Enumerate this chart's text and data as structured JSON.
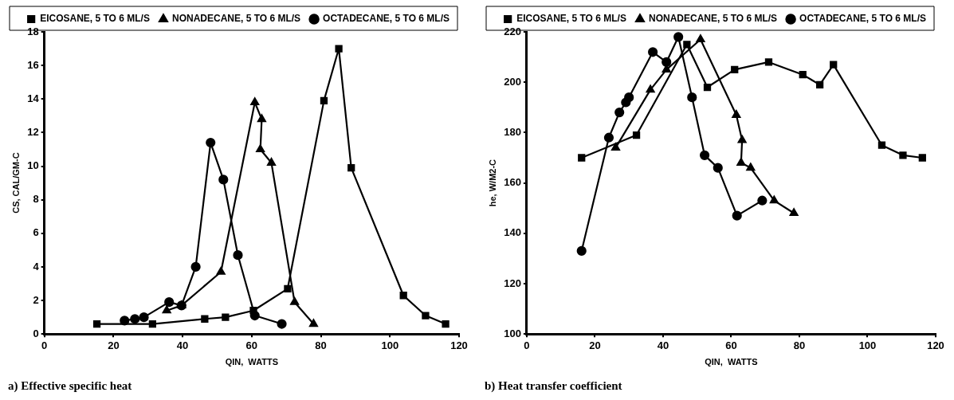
{
  "chart_data": [
    {
      "type": "line",
      "title": "a) Effective specific heat",
      "xlabel": "QIN,  WATTS",
      "ylabel": "CS, CAL/GM-C",
      "xlim": [
        0,
        120
      ],
      "xticks": [
        0,
        20,
        40,
        60,
        80,
        100,
        120
      ],
      "ylim": [
        0,
        18
      ],
      "yticks": [
        0,
        2,
        4,
        6,
        8,
        10,
        12,
        14,
        16,
        18
      ],
      "grid": false,
      "legend": "top right",
      "line_style": "solid",
      "series": [
        {
          "name": "EICOSANE, 5 TO 6 ML/S",
          "color": "#000000",
          "marker": "square",
          "x": [
            15.2,
            31.3,
            46.4,
            52.4,
            60.5,
            70.4,
            80.9,
            85.2,
            88.8,
            103.9,
            110.3,
            116.1
          ],
          "values": [
            0.6,
            0.6,
            0.9,
            1.0,
            1.4,
            2.7,
            13.9,
            17.0,
            9.9,
            2.3,
            1.1,
            0.6
          ]
        },
        {
          "name": "NONADECANE, 5 TO 6 ML/S",
          "color": "#000000",
          "marker": "triangle",
          "x": [
            35.4,
            39.7,
            51.1,
            60.9,
            62.9,
            62.5,
            65.7,
            72.4,
            77.9
          ],
          "values": [
            1.4,
            1.7,
            3.7,
            13.8,
            12.8,
            11.0,
            10.2,
            1.9,
            0.6
          ]
        },
        {
          "name": "OCTADECANE, 5 TO 6 ML/S",
          "color": "#000000",
          "marker": "circle",
          "x": [
            23.2,
            26.2,
            28.8,
            36.1,
            39.7,
            43.8,
            48.1,
            51.8,
            56.0,
            60.9,
            68.7
          ],
          "values": [
            0.8,
            0.9,
            1.0,
            1.9,
            1.7,
            4.0,
            11.4,
            9.2,
            4.7,
            1.1,
            0.6
          ]
        }
      ]
    },
    {
      "type": "line",
      "title": "b) Heat transfer coefficient",
      "xlabel": "QIN,  WATTS",
      "ylabel": "he, W/M2-C",
      "xlim": [
        0,
        120
      ],
      "xticks": [
        0,
        20,
        40,
        60,
        80,
        100,
        120
      ],
      "ylim": [
        100,
        220
      ],
      "yticks": [
        100,
        120,
        140,
        160,
        180,
        200,
        220
      ],
      "grid": false,
      "legend": "top right",
      "line_style": "solid",
      "series": [
        {
          "name": "EICOSANE, 5 TO 6 ML/S",
          "color": "#000000",
          "marker": "square",
          "x": [
            16.1,
            32.2,
            47,
            53,
            61,
            71,
            81,
            86,
            90,
            104.2,
            110.4,
            116.1
          ],
          "values": [
            170,
            179,
            215,
            198,
            205,
            208,
            203,
            199,
            207,
            175,
            171,
            170
          ]
        },
        {
          "name": "NONADECANE, 5 TO 6 ML/S",
          "color": "#000000",
          "marker": "triangle",
          "x": [
            26.1,
            36.3,
            41,
            51,
            61.5,
            63.2,
            62.9,
            65.7,
            72.6,
            78.4
          ],
          "values": [
            174,
            197,
            205,
            217,
            187,
            177,
            168,
            166,
            153,
            148
          ]
        },
        {
          "name": "OCTADECANE, 5 TO 6 ML/S",
          "color": "#000000",
          "marker": "circle",
          "x": [
            16.1,
            24.1,
            27.2,
            29.1,
            30,
            37,
            41,
            44.5,
            48.5,
            52.2,
            56.1,
            61.7,
            69.1
          ],
          "values": [
            133,
            178,
            188,
            192,
            194,
            212,
            208,
            218,
            194,
            171,
            166,
            147,
            153
          ]
        }
      ]
    }
  ]
}
